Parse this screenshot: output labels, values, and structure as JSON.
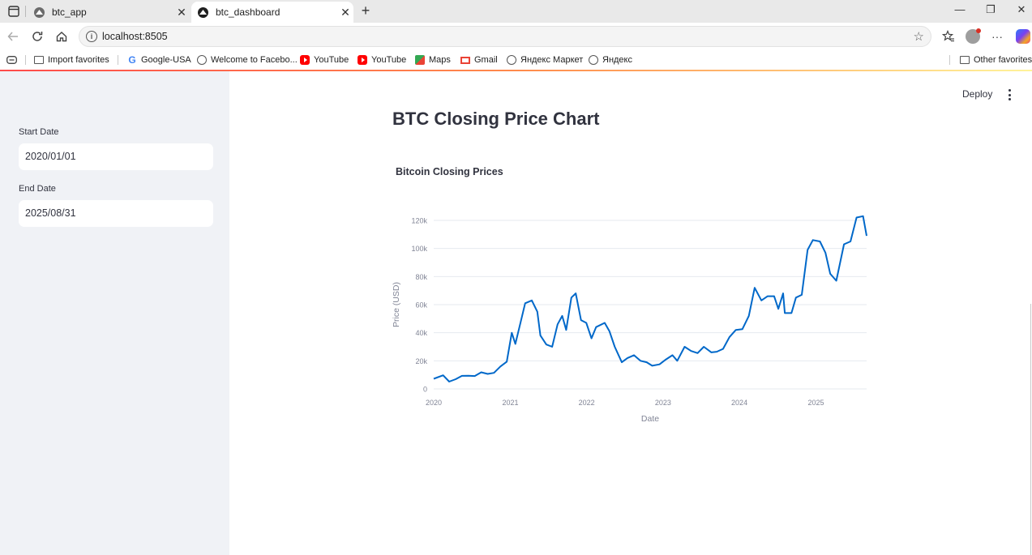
{
  "browser": {
    "tabs": [
      {
        "label": "btc_app",
        "active": false
      },
      {
        "label": "btc_dashboard",
        "active": true
      }
    ],
    "new_tab_symbol": "+",
    "url": "localhost:8505",
    "bookmarks": [
      {
        "label": "Import favorites",
        "icon": "import-icon"
      },
      {
        "label": "Google-USA",
        "icon": "google-icon"
      },
      {
        "label": "Welcome to Facebo...",
        "icon": "globe-icon"
      },
      {
        "label": "YouTube",
        "icon": "youtube-icon"
      },
      {
        "label": "YouTube",
        "icon": "youtube-icon"
      },
      {
        "label": "Maps",
        "icon": "maps-icon"
      },
      {
        "label": "Gmail",
        "icon": "gmail-icon"
      },
      {
        "label": "Яндекс Маркет",
        "icon": "globe-icon"
      },
      {
        "label": "Яндекс",
        "icon": "globe-icon"
      }
    ],
    "other_favorites": "Other favorites"
  },
  "sidebar": {
    "start_label": "Start Date",
    "start_value": "2020/01/01",
    "end_label": "End Date",
    "end_value": "2025/08/31"
  },
  "header": {
    "deploy_label": "Deploy"
  },
  "main": {
    "title": "BTC Closing Price Chart",
    "chart_title": "Bitcoin Closing Prices"
  },
  "chart_data": {
    "type": "line",
    "title": "Bitcoin Closing Prices",
    "xlabel": "Date",
    "ylabel": "Price (USD)",
    "x_ticks": [
      "2020",
      "2021",
      "2022",
      "2023",
      "2024",
      "2025"
    ],
    "y_ticks": [
      "0",
      "20k",
      "40k",
      "60k",
      "80k",
      "100k",
      "120k"
    ],
    "xlim": [
      "2020-01-01",
      "2025-08-31"
    ],
    "ylim": [
      0,
      120000
    ],
    "grid": true,
    "line_color": "#0068c9",
    "series": [
      {
        "x": [
          "2020-01-01",
          "2020-02-15",
          "2020-03-15",
          "2020-04-15",
          "2020-05-15",
          "2020-06-15",
          "2020-07-15",
          "2020-08-15",
          "2020-09-15",
          "2020-10-15",
          "2020-11-15",
          "2020-12-15",
          "2021-01-08",
          "2021-01-25",
          "2021-02-20",
          "2021-03-13",
          "2021-04-14",
          "2021-05-10",
          "2021-05-25",
          "2021-06-22",
          "2021-07-20",
          "2021-08-15",
          "2021-09-06",
          "2021-09-25",
          "2021-10-20",
          "2021-11-10",
          "2021-12-05",
          "2021-12-30",
          "2022-01-24",
          "2022-02-15",
          "2022-03-28",
          "2022-04-20",
          "2022-05-15",
          "2022-06-18",
          "2022-07-15",
          "2022-08-15",
          "2022-09-15",
          "2022-10-15",
          "2022-11-10",
          "2022-12-15",
          "2023-01-15",
          "2023-02-15",
          "2023-03-10",
          "2023-04-14",
          "2023-05-15",
          "2023-06-15",
          "2023-07-15",
          "2023-08-20",
          "2023-09-15",
          "2023-10-15",
          "2023-11-15",
          "2023-12-15",
          "2024-01-15",
          "2024-02-15",
          "2024-03-14",
          "2024-04-15",
          "2024-05-15",
          "2024-06-15",
          "2024-07-05",
          "2024-07-28",
          "2024-08-05",
          "2024-09-06",
          "2024-09-27",
          "2024-10-25",
          "2024-11-22",
          "2024-12-17",
          "2025-01-20",
          "2025-02-15",
          "2025-03-10",
          "2025-04-08",
          "2025-05-15",
          "2025-06-15",
          "2025-07-14",
          "2025-08-14",
          "2025-08-31"
        ],
        "y": [
          7200,
          9700,
          5200,
          6900,
          9300,
          9400,
          9200,
          11800,
          10700,
          11400,
          16000,
          19400,
          40000,
          32000,
          48000,
          61000,
          63000,
          55000,
          38000,
          31600,
          30000,
          46000,
          52000,
          42000,
          65000,
          68000,
          49000,
          47000,
          36000,
          44000,
          47000,
          41000,
          30000,
          19000,
          22000,
          24000,
          20000,
          19000,
          16500,
          17500,
          21000,
          24000,
          20000,
          30000,
          27000,
          25500,
          30000,
          26000,
          26500,
          28500,
          37000,
          42000,
          42500,
          52000,
          72000,
          63000,
          66000,
          66000,
          57000,
          68000,
          54000,
          54000,
          65000,
          67000,
          99000,
          106000,
          105000,
          97000,
          82000,
          77000,
          103000,
          105000,
          122000,
          123000,
          109000
        ]
      }
    ]
  }
}
